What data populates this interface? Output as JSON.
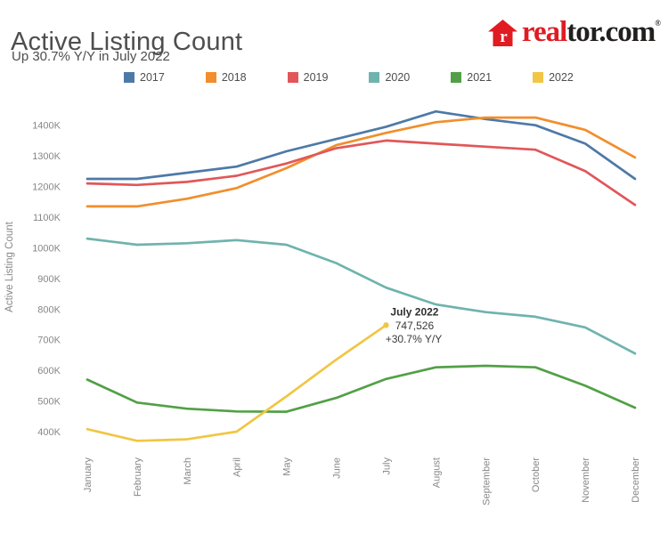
{
  "header": {
    "title": "Active Listing Count",
    "subtitle": "Up 30.7% Y/Y in July 2022"
  },
  "logo": {
    "house_letter": "r",
    "brand_prefix": "real",
    "brand_suffix": "tor.com",
    "registered_mark": "®",
    "brand_red": "#e11b22",
    "brand_dark": "#221f1f"
  },
  "legend": {
    "items": [
      {
        "label": "2017",
        "color": "#4e79a7"
      },
      {
        "label": "2018",
        "color": "#f28e2b"
      },
      {
        "label": "2019",
        "color": "#e15759"
      },
      {
        "label": "2020",
        "color": "#6fb3ae"
      },
      {
        "label": "2021",
        "color": "#52a046"
      },
      {
        "label": "2022",
        "color": "#f0c644"
      }
    ]
  },
  "chart_data": {
    "type": "line",
    "title": "Active Listing Count",
    "subtitle": "Up 30.7% Y/Y in July 2022",
    "xlabel": "",
    "ylabel": "Active Listing Count",
    "x_categories": [
      "January",
      "February",
      "March",
      "April",
      "May",
      "June",
      "July",
      "August",
      "September",
      "October",
      "November",
      "December"
    ],
    "y_unit": "thousands",
    "ylim": [
      350,
      1480
    ],
    "grid": false,
    "legend_position": "top",
    "y_ticks": [
      {
        "value": 400,
        "label": "400K"
      },
      {
        "value": 500,
        "label": "500K"
      },
      {
        "value": 600,
        "label": "600K"
      },
      {
        "value": 700,
        "label": "700K"
      },
      {
        "value": 800,
        "label": "800K"
      },
      {
        "value": 900,
        "label": "900K"
      },
      {
        "value": 1000,
        "label": "1000K"
      },
      {
        "value": 1100,
        "label": "1100K"
      },
      {
        "value": 1200,
        "label": "1200K"
      },
      {
        "value": 1300,
        "label": "1300K"
      },
      {
        "value": 1400,
        "label": "1400K"
      }
    ],
    "series": [
      {
        "name": "2017",
        "color": "#4e79a7",
        "values": [
          1225,
          1225,
          1245,
          1265,
          1315,
          1355,
          1395,
          1445,
          1420,
          1400,
          1340,
          1225
        ]
      },
      {
        "name": "2018",
        "color": "#f28e2b",
        "values": [
          1135,
          1135,
          1160,
          1195,
          1260,
          1335,
          1375,
          1410,
          1425,
          1425,
          1385,
          1295
        ]
      },
      {
        "name": "2019",
        "color": "#e15759",
        "values": [
          1210,
          1205,
          1215,
          1235,
          1275,
          1325,
          1350,
          1340,
          1330,
          1320,
          1250,
          1140
        ]
      },
      {
        "name": "2020",
        "color": "#6fb3ae",
        "values": [
          1030,
          1010,
          1015,
          1025,
          1010,
          950,
          870,
          815,
          790,
          775,
          740,
          655
        ]
      },
      {
        "name": "2021",
        "color": "#52a046",
        "values": [
          570,
          495,
          475,
          466,
          465,
          510,
          572,
          610,
          615,
          610,
          550,
          478
        ]
      },
      {
        "name": "2022",
        "color": "#f0c644",
        "values": [
          408,
          370,
          375,
          400,
          515,
          635,
          747.526,
          null,
          null,
          null,
          null,
          null
        ]
      }
    ],
    "annotation": {
      "label": "July 2022",
      "value": "747,526",
      "change": "+30.7% Y/Y",
      "x_category": "July",
      "series": "2022"
    }
  }
}
